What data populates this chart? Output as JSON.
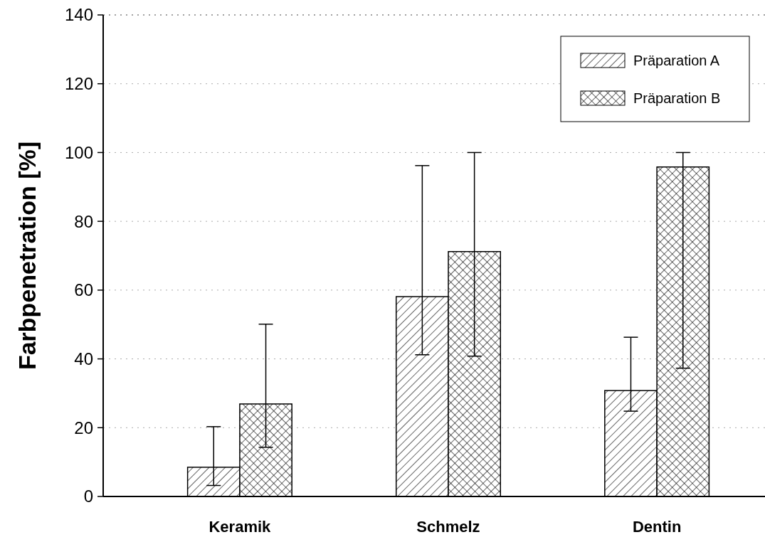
{
  "chart_data": {
    "type": "bar",
    "ylabel": "Farbpenetration [%]",
    "categories": [
      "Keramik",
      "Schmelz",
      "Dentin"
    ],
    "series": [
      {
        "name": "Präparation A",
        "color": "#000000",
        "values": [
          8.5,
          58.1,
          30.8
        ],
        "errors": [
          [
            3.2,
            20.3
          ],
          [
            41.2,
            96.2
          ],
          [
            24.8,
            46.3
          ]
        ]
      },
      {
        "name": "Präparation B",
        "color": "#000000",
        "values": [
          26.9,
          71.2,
          95.8
        ],
        "errors": [
          [
            14.3,
            50.1
          ],
          [
            40.8,
            100
          ],
          [
            37.3,
            100
          ]
        ]
      }
    ],
    "ylim": [
      0,
      140
    ],
    "yticks": [
      0,
      20,
      40,
      60,
      80,
      100,
      120,
      140
    ],
    "grid": "y",
    "legend": "top right"
  }
}
